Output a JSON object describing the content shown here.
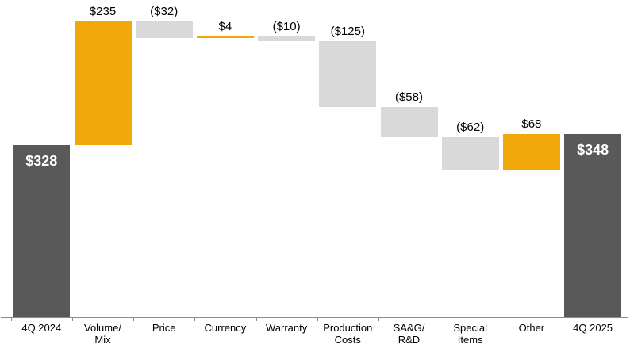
{
  "chart": {
    "background": "#FFFFFF",
    "colors": {
      "total": "#595959",
      "positive": "#F0A80A",
      "negative": "#D9D9D9",
      "inside_label_text": "#FFFFFF",
      "outside_label_text": "#000000",
      "axis_line": "#8C8C8C"
    }
  },
  "chart_data": {
    "type": "bar",
    "subtype": "waterfall",
    "title": "",
    "xlabel": "",
    "ylabel": "",
    "grid": false,
    "legend": false,
    "ylim": [
      0,
      563
    ],
    "start_total": 328,
    "end_total": 348,
    "categories": [
      "4Q 2024",
      "Volume/Mix",
      "Price",
      "Currency",
      "Warranty",
      "Production Costs",
      "SA&G/R&D",
      "Special Items",
      "Other",
      "4Q 2025"
    ],
    "bars": [
      {
        "category": "4Q 2024",
        "category_lines": [
          "4Q 2024"
        ],
        "value": 328,
        "label": "$328",
        "kind": "total"
      },
      {
        "category": "Volume/Mix",
        "category_lines": [
          "Volume/",
          "Mix"
        ],
        "value": 235,
        "label": "$235",
        "kind": "positive"
      },
      {
        "category": "Price",
        "category_lines": [
          "Price"
        ],
        "value": -32,
        "label": "($32)",
        "kind": "negative"
      },
      {
        "category": "Currency",
        "category_lines": [
          "Currency"
        ],
        "value": 4,
        "label": "$4",
        "kind": "positive"
      },
      {
        "category": "Warranty",
        "category_lines": [
          "Warranty"
        ],
        "value": -10,
        "label": "($10)",
        "kind": "negative"
      },
      {
        "category": "Production Costs",
        "category_lines": [
          "Production",
          "Costs"
        ],
        "value": -125,
        "label": "($125)",
        "kind": "negative"
      },
      {
        "category": "SA&G/R&D",
        "category_lines": [
          "SA&G/",
          "R&D"
        ],
        "value": -58,
        "label": "($58)",
        "kind": "negative"
      },
      {
        "category": "Special Items",
        "category_lines": [
          "Special",
          "Items"
        ],
        "value": -62,
        "label": "($62)",
        "kind": "negative"
      },
      {
        "category": "Other",
        "category_lines": [
          "Other"
        ],
        "value": 68,
        "label": "$68",
        "kind": "positive"
      },
      {
        "category": "4Q 2025",
        "category_lines": [
          "4Q 2025"
        ],
        "value": 348,
        "label": "$348",
        "kind": "total"
      }
    ]
  }
}
